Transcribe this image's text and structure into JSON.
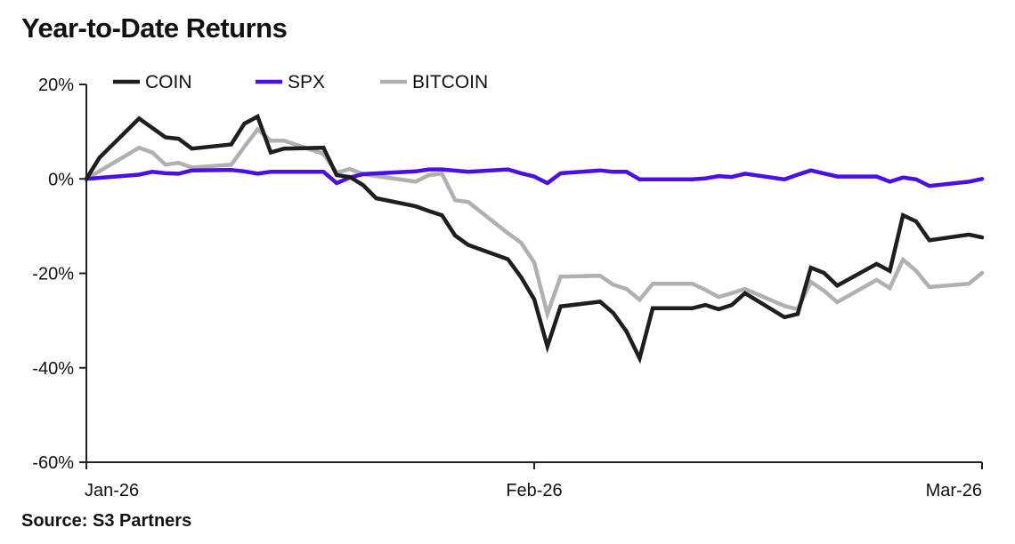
{
  "chart_data": {
    "type": "line",
    "title": "Year-to-Date Returns",
    "source": "Source: S3 Partners",
    "xlabel": "",
    "ylabel": "",
    "xlim": [
      0,
      68
    ],
    "ylim": [
      -60,
      20
    ],
    "x_ticks": [
      {
        "value": 0,
        "label": "Jan-26"
      },
      {
        "value": 34,
        "label": "Feb-26"
      },
      {
        "value": 68,
        "label": "Mar-26"
      }
    ],
    "y_ticks": [
      {
        "value": 20,
        "label": "20%"
      },
      {
        "value": 0,
        "label": "0%"
      },
      {
        "value": -20,
        "label": "-20%"
      },
      {
        "value": -40,
        "label": "-40%"
      },
      {
        "value": -60,
        "label": "-60%"
      }
    ],
    "grid": false,
    "legend_position": "top",
    "series": [
      {
        "name": "COIN",
        "color": "#1e1e1e",
        "points": [
          [
            0,
            0
          ],
          [
            1,
            4.5
          ],
          [
            4,
            12.8
          ],
          [
            6,
            8.8
          ],
          [
            7,
            8.5
          ],
          [
            8,
            6.4
          ],
          [
            11,
            7.3
          ],
          [
            12,
            11.7
          ],
          [
            13,
            13.2
          ],
          [
            14,
            5.6
          ],
          [
            15,
            6.4
          ],
          [
            18,
            6.6
          ],
          [
            19,
            0.8
          ],
          [
            20,
            0.4
          ],
          [
            21,
            -1.3
          ],
          [
            22,
            -4.1
          ],
          [
            25,
            -5.8
          ],
          [
            26,
            -6.8
          ],
          [
            27,
            -7.7
          ],
          [
            28,
            -12
          ],
          [
            29,
            -14
          ],
          [
            32,
            -17
          ],
          [
            33,
            -20.8
          ],
          [
            34,
            -25.5
          ],
          [
            35,
            -35.5
          ],
          [
            36,
            -27
          ],
          [
            39,
            -26
          ],
          [
            40,
            -28.4
          ],
          [
            41,
            -32.3
          ],
          [
            42,
            -38
          ],
          [
            43,
            -27.4
          ],
          [
            46,
            -27.4
          ],
          [
            47,
            -26.7
          ],
          [
            48,
            -27.6
          ],
          [
            49,
            -26.7
          ],
          [
            50,
            -24.2
          ],
          [
            53,
            -29.3
          ],
          [
            54,
            -28.6
          ],
          [
            55,
            -18.8
          ],
          [
            56,
            -19.9
          ],
          [
            57,
            -22.6
          ],
          [
            60,
            -18
          ],
          [
            61,
            -19.5
          ],
          [
            62,
            -7.7
          ],
          [
            63,
            -9
          ],
          [
            64,
            -13
          ],
          [
            67,
            -11.8
          ],
          [
            68,
            -12.4
          ]
        ]
      },
      {
        "name": "SPX",
        "color": "#4a0fe8",
        "points": [
          [
            0,
            0
          ],
          [
            4,
            0.9
          ],
          [
            5,
            1.5
          ],
          [
            6,
            1.2
          ],
          [
            7,
            1.1
          ],
          [
            8,
            1.8
          ],
          [
            11,
            1.9
          ],
          [
            12,
            1.6
          ],
          [
            13,
            1.1
          ],
          [
            14,
            1.5
          ],
          [
            18,
            1.5
          ],
          [
            19,
            -0.9
          ],
          [
            20,
            0.3
          ],
          [
            21,
            1.0
          ],
          [
            25,
            1.6
          ],
          [
            26,
            2.0
          ],
          [
            27,
            2.0
          ],
          [
            29,
            1.5
          ],
          [
            32,
            2.0
          ],
          [
            33,
            1.2
          ],
          [
            34,
            0.5
          ],
          [
            35,
            -0.9
          ],
          [
            36,
            1.2
          ],
          [
            39,
            1.8
          ],
          [
            40,
            1.5
          ],
          [
            41,
            1.5
          ],
          [
            42,
            -0.1
          ],
          [
            43,
            -0.1
          ],
          [
            46,
            -0.1
          ],
          [
            47,
            0.1
          ],
          [
            48,
            0.6
          ],
          [
            49,
            0.4
          ],
          [
            50,
            1.1
          ],
          [
            53,
            -0.1
          ],
          [
            54,
            0.9
          ],
          [
            55,
            1.8
          ],
          [
            57,
            0.5
          ],
          [
            60,
            0.5
          ],
          [
            61,
            -0.6
          ],
          [
            62,
            0.3
          ],
          [
            63,
            -0.1
          ],
          [
            64,
            -1.5
          ],
          [
            67,
            -0.6
          ],
          [
            68,
            0
          ]
        ]
      },
      {
        "name": "BITCOIN",
        "color": "#b0b0b0",
        "points": [
          [
            0,
            0
          ],
          [
            4,
            6.6
          ],
          [
            5,
            5.6
          ],
          [
            6,
            3.0
          ],
          [
            7,
            3.4
          ],
          [
            8,
            2.4
          ],
          [
            11,
            3.0
          ],
          [
            12,
            6.8
          ],
          [
            13,
            10.5
          ],
          [
            14,
            8.1
          ],
          [
            15,
            8.1
          ],
          [
            18,
            5.3
          ],
          [
            19,
            1.3
          ],
          [
            20,
            2.1
          ],
          [
            21,
            1.0
          ],
          [
            25,
            -0.6
          ],
          [
            26,
            0.8
          ],
          [
            27,
            1.1
          ],
          [
            28,
            -4.5
          ],
          [
            29,
            -4.9
          ],
          [
            32,
            -11.5
          ],
          [
            33,
            -13.5
          ],
          [
            34,
            -17.7
          ],
          [
            35,
            -28.6
          ],
          [
            36,
            -20.7
          ],
          [
            39,
            -20.5
          ],
          [
            40,
            -22.4
          ],
          [
            41,
            -23.3
          ],
          [
            42,
            -25.6
          ],
          [
            43,
            -22.2
          ],
          [
            46,
            -22.2
          ],
          [
            47,
            -23.5
          ],
          [
            48,
            -25
          ],
          [
            49,
            -24.2
          ],
          [
            50,
            -23.3
          ],
          [
            53,
            -26.9
          ],
          [
            54,
            -27.6
          ],
          [
            55,
            -21.8
          ],
          [
            56,
            -23.7
          ],
          [
            57,
            -26.1
          ],
          [
            60,
            -21.4
          ],
          [
            61,
            -23.1
          ],
          [
            62,
            -17.1
          ],
          [
            63,
            -19.5
          ],
          [
            64,
            -22.9
          ],
          [
            67,
            -22.2
          ],
          [
            68,
            -19.9
          ]
        ]
      }
    ]
  }
}
